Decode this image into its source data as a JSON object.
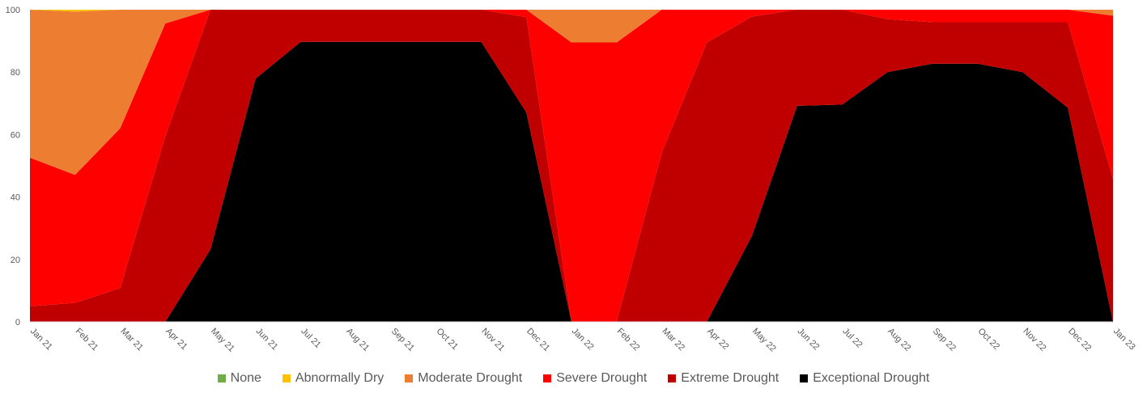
{
  "chart_data": {
    "type": "area",
    "stacked": true,
    "categories": [
      "Jan 21",
      "Feb 21",
      "Mar 21",
      "Apr 21",
      "May 21",
      "Jun 21",
      "Jul 21",
      "Aug 21",
      "Sep 21",
      "Oct 21",
      "Nov 21",
      "Dec 21",
      "Jan 22",
      "Feb 22",
      "Mar 22",
      "Apr 22",
      "May 22",
      "Jun 22",
      "Jul 22",
      "Aug 22",
      "Sep 22",
      "Oct 22",
      "Nov 22",
      "Dec 22",
      "Jan 23"
    ],
    "ylim": [
      0,
      100
    ],
    "yticks": [
      0,
      20,
      40,
      60,
      80,
      100
    ],
    "grid": false,
    "legend_position": "bottom",
    "series": [
      {
        "name": "None",
        "color": "#70AD47",
        "values": [
          0,
          0,
          0,
          0,
          0,
          0,
          0,
          0,
          0,
          0,
          0,
          0,
          0,
          0,
          0,
          0,
          0,
          0,
          0,
          0,
          0,
          0,
          0,
          0,
          0
        ]
      },
      {
        "name": "Abnormally Dry",
        "color": "#FFC000",
        "values": [
          0,
          0.6,
          0,
          0,
          0,
          0,
          0,
          0,
          0,
          0,
          0,
          0,
          0,
          0,
          0,
          0,
          0,
          0,
          0,
          0,
          0,
          0,
          0,
          0,
          0
        ]
      },
      {
        "name": "Moderate Drought",
        "color": "#ED7D31",
        "values": [
          47.4,
          52.3,
          38,
          4.4,
          0,
          0,
          0,
          0,
          0,
          0,
          0,
          0,
          10.5,
          10.5,
          0,
          0,
          0,
          0,
          0,
          0,
          0,
          0,
          0,
          0,
          1.9
        ]
      },
      {
        "name": "Severe Drought",
        "color": "#FF0000",
        "values": [
          47.6,
          41.0,
          51.2,
          36.1,
          0,
          0,
          0,
          0,
          0,
          0,
          0,
          2.4,
          89.5,
          89.5,
          45.8,
          10.5,
          2.2,
          0,
          0,
          3.0,
          4.0,
          4.0,
          4.0,
          4.0,
          52.3
        ]
      },
      {
        "name": "Extreme Drought",
        "color": "#C00000",
        "values": [
          5,
          6.1,
          10.8,
          59.5,
          76.8,
          22.1,
          10.3,
          10.3,
          10.3,
          10.3,
          10.3,
          30.5,
          0,
          0,
          54.2,
          89.5,
          70.2,
          30.8,
          30.4,
          17,
          13.3,
          13.3,
          16,
          27.4,
          45.8
        ]
      },
      {
        "name": "Exceptional Drought",
        "color": "#000000",
        "values": [
          0,
          0,
          0,
          0,
          23.2,
          77.9,
          89.7,
          89.7,
          89.7,
          89.7,
          89.7,
          67.1,
          0,
          0,
          0,
          0,
          27.6,
          69.2,
          69.6,
          80,
          82.7,
          82.7,
          80,
          68.6,
          0
        ]
      }
    ]
  }
}
